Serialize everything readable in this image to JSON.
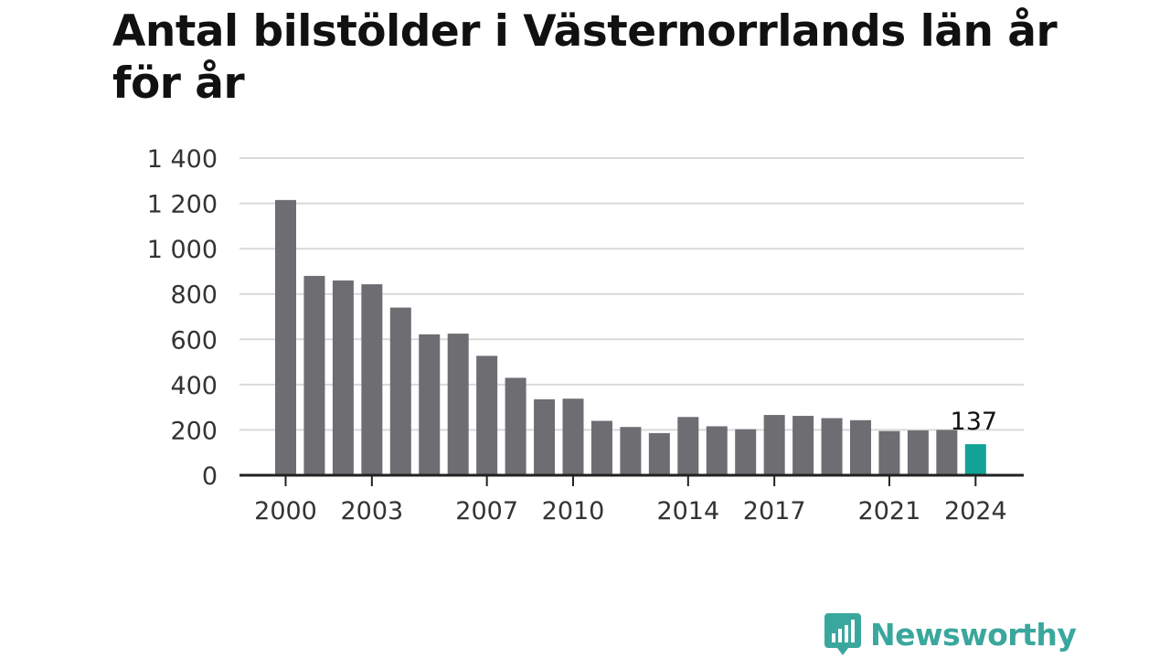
{
  "title": "Antal bilstölder i Västernorrlands län år för år",
  "colors": {
    "bar": "#6e6d72",
    "highlight": "#12a396",
    "grid": "#d9d9d9",
    "axis": "#222222"
  },
  "chart_data": {
    "type": "bar",
    "title": "Antal bilstölder i Västernorrlands län år för år",
    "xlabel": "",
    "ylabel": "",
    "categories": [
      "2000",
      "2001",
      "2002",
      "2003",
      "2004",
      "2005",
      "2006",
      "2007",
      "2008",
      "2009",
      "2010",
      "2011",
      "2012",
      "2013",
      "2014",
      "2015",
      "2016",
      "2017",
      "2018",
      "2019",
      "2020",
      "2021",
      "2022",
      "2023",
      "2024"
    ],
    "values": [
      1215,
      880,
      860,
      843,
      740,
      622,
      625,
      527,
      430,
      335,
      338,
      240,
      213,
      186,
      257,
      216,
      203,
      266,
      262,
      252,
      243,
      195,
      198,
      200,
      137
    ],
    "ylim": [
      0,
      1400
    ],
    "yticks": [
      0,
      200,
      400,
      600,
      800,
      1000,
      1200,
      1400
    ],
    "ytick_labels": [
      "0",
      "200",
      "400",
      "600",
      "800",
      "1 000",
      "1 200",
      "1 400"
    ],
    "xtick_labels": [
      "2000",
      "2003",
      "2007",
      "2010",
      "2014",
      "2017",
      "2021",
      "2024"
    ],
    "highlight_category": "2024",
    "annotation": "137",
    "grid": true
  },
  "logo": {
    "text": "Newsworthy",
    "icon": "newsworthy-chart-icon"
  }
}
